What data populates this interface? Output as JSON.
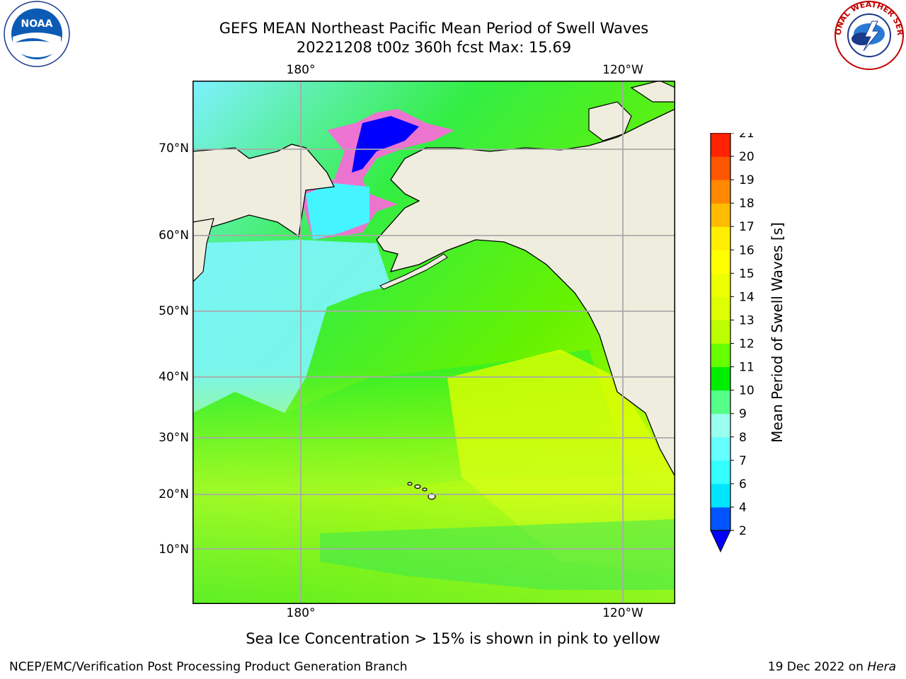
{
  "title": {
    "line1": "GEFS MEAN Northeast Pacific Mean Period of Swell Waves",
    "line2": "20221208 t00z 360h fcst   Max: 15.69"
  },
  "map": {
    "lat_labels": [
      "70°N",
      "60°N",
      "50°N",
      "40°N",
      "30°N",
      "20°N",
      "10°N"
    ],
    "lon_labels_top": [
      "180°",
      "120°W"
    ],
    "lon_labels_bottom": [
      "180°",
      "120°W"
    ]
  },
  "colorbar": {
    "label": "Mean Period of Swell Waves [s]",
    "ticks": [
      "2",
      "4",
      "6",
      "7",
      "8",
      "9",
      "10",
      "11",
      "12",
      "13",
      "14",
      "15",
      "16",
      "17",
      "18",
      "19",
      "20",
      "21"
    ],
    "colors": [
      "#0055ff",
      "#00e5ff",
      "#33ffff",
      "#66ffff",
      "#99ffee",
      "#55ff88",
      "#00ee00",
      "#66ff00",
      "#bbff00",
      "#ddff00",
      "#eeff00",
      "#ffff00",
      "#ffee00",
      "#ffbb00",
      "#ff8800",
      "#ff5500",
      "#ff2200"
    ],
    "extend_color": "#0000ff"
  },
  "subtitle": "Sea Ice Concentration > 15% is shown in pink to yellow",
  "footer": {
    "left": "NCEP/EMC/Verification Post Processing Product Generation Branch",
    "right_date": "19 Dec 2022 on ",
    "right_host": "Hera"
  },
  "logos": {
    "left": "NOAA",
    "right_ring": "NATIONAL WEATHER SERVICE"
  }
}
